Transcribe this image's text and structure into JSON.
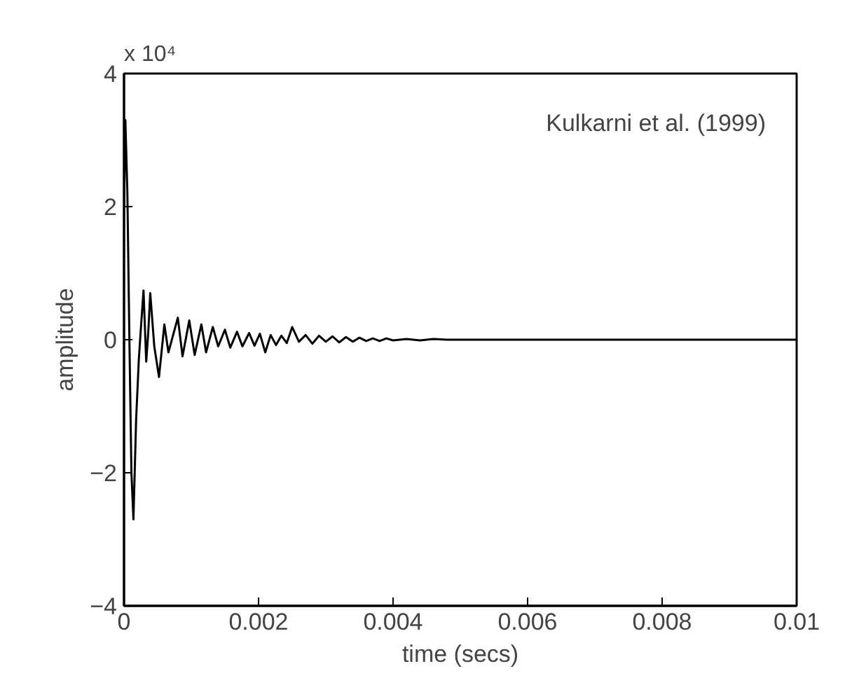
{
  "chart_data": {
    "type": "line",
    "xlabel": "time (secs)",
    "ylabel": "amplitude",
    "annotations": [
      "x 10⁴",
      "Kulkarni et al. (1999)"
    ],
    "x": [
      0,
      2e-05,
      5e-05,
      8e-05,
      0.00011,
      0.00014,
      0.00018,
      0.00022,
      0.00025,
      0.00029,
      0.00033,
      0.00036,
      0.00039,
      0.00045,
      0.00052,
      0.0006,
      0.00066,
      0.0008,
      0.00087,
      0.00097,
      0.00105,
      0.00115,
      0.00122,
      0.00132,
      0.0014,
      0.0015,
      0.00158,
      0.00168,
      0.00176,
      0.00186,
      0.00194,
      0.00202,
      0.0021,
      0.00218,
      0.00226,
      0.00234,
      0.00242,
      0.0025,
      0.0026,
      0.0027,
      0.0028,
      0.0029,
      0.003,
      0.0031,
      0.0032,
      0.0033,
      0.0034,
      0.0035,
      0.0036,
      0.0037,
      0.0038,
      0.0039,
      0.004,
      0.0042,
      0.0044,
      0.0046,
      0.0048,
      0.005,
      0.006,
      0.008,
      0.01
    ],
    "series": [
      {
        "color": "#000000",
        "values": [
          2.0,
          3.3,
          2.2,
          0,
          -2.0,
          -2.7,
          -1.2,
          -0.3,
          0.16,
          0.74,
          -0.33,
          0.1,
          0.7,
          -0.1,
          -0.56,
          0.23,
          -0.19,
          0.33,
          -0.25,
          0.29,
          -0.23,
          0.23,
          -0.19,
          0.19,
          -0.1,
          0.15,
          -0.12,
          0.12,
          -0.1,
          0.1,
          -0.09,
          0.09,
          -0.19,
          0.07,
          -0.08,
          0.06,
          -0.05,
          0.19,
          -0.03,
          0.07,
          -0.06,
          0.06,
          -0.03,
          0.05,
          -0.04,
          0.04,
          -0.03,
          0.03,
          -0.02,
          0.02,
          -0.02,
          0.02,
          -0.01,
          0.01,
          -0.01,
          0.01,
          0,
          0,
          0,
          0,
          0
        ]
      }
    ],
    "xlim": [
      0,
      0.01
    ],
    "xticks": [
      0,
      0.002,
      0.004,
      0.006,
      0.008,
      0.01
    ],
    "ylim": [
      -4,
      4
    ],
    "yticks": [
      {
        "value": -4,
        "label": "−4"
      },
      {
        "value": -2,
        "label": "−2"
      },
      0,
      2,
      4
    ],
    "grid": false,
    "marker": "none",
    "line_style": "solid"
  }
}
